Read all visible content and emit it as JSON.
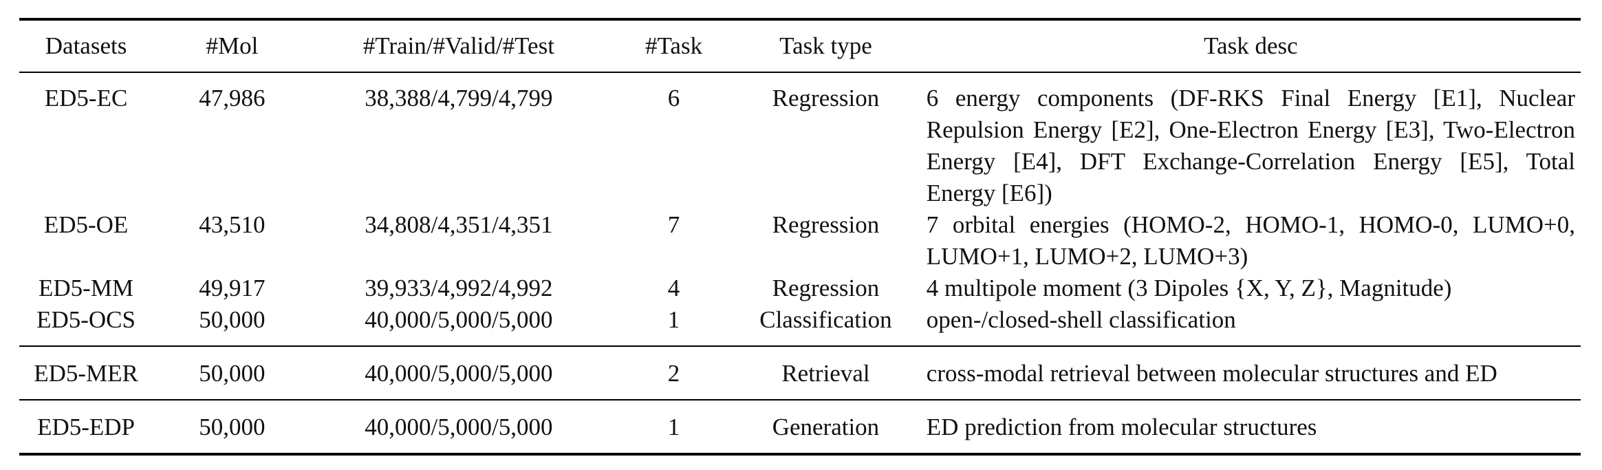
{
  "table": {
    "headers": [
      "Datasets",
      "#Mol",
      "#Train/#Valid/#Test",
      "#Task",
      "Task type",
      "Task desc"
    ],
    "groups": [
      [
        {
          "dataset": "ED5-EC",
          "mol": "47,986",
          "split": "38,388/4,799/4,799",
          "task": "6",
          "type": "Regression",
          "desc": "6 energy components (DF-RKS Final Energy [E1], Nuclear Repulsion Energy [E2], One-Electron Energy [E3], Two-Electron Energy [E4], DFT Exchange-Correlation Energy [E5], Total Energy [E6])"
        },
        {
          "dataset": "ED5-OE",
          "mol": "43,510",
          "split": "34,808/4,351/4,351",
          "task": "7",
          "type": "Regression",
          "desc": "7 orbital energies (HOMO-2, HOMO-1, HOMO-0, LUMO+0, LUMO+1, LUMO+2, LUMO+3)"
        },
        {
          "dataset": "ED5-MM",
          "mol": "49,917",
          "split": "39,933/4,992/4,992",
          "task": "4",
          "type": "Regression",
          "desc": "4 multipole moment (3 Dipoles {X, Y, Z}, Magnitude)"
        },
        {
          "dataset": "ED5-OCS",
          "mol": "50,000",
          "split": "40,000/5,000/5,000",
          "task": "1",
          "type": "Classification",
          "desc": "open-/closed-shell classification"
        }
      ],
      [
        {
          "dataset": "ED5-MER",
          "mol": "50,000",
          "split": "40,000/5,000/5,000",
          "task": "2",
          "type": "Retrieval",
          "desc": "cross-modal retrieval between molecular structures and ED"
        }
      ],
      [
        {
          "dataset": "ED5-EDP",
          "mol": "50,000",
          "split": "40,000/5,000/5,000",
          "task": "1",
          "type": "Generation",
          "desc": "ED prediction from molecular structures"
        }
      ]
    ]
  }
}
